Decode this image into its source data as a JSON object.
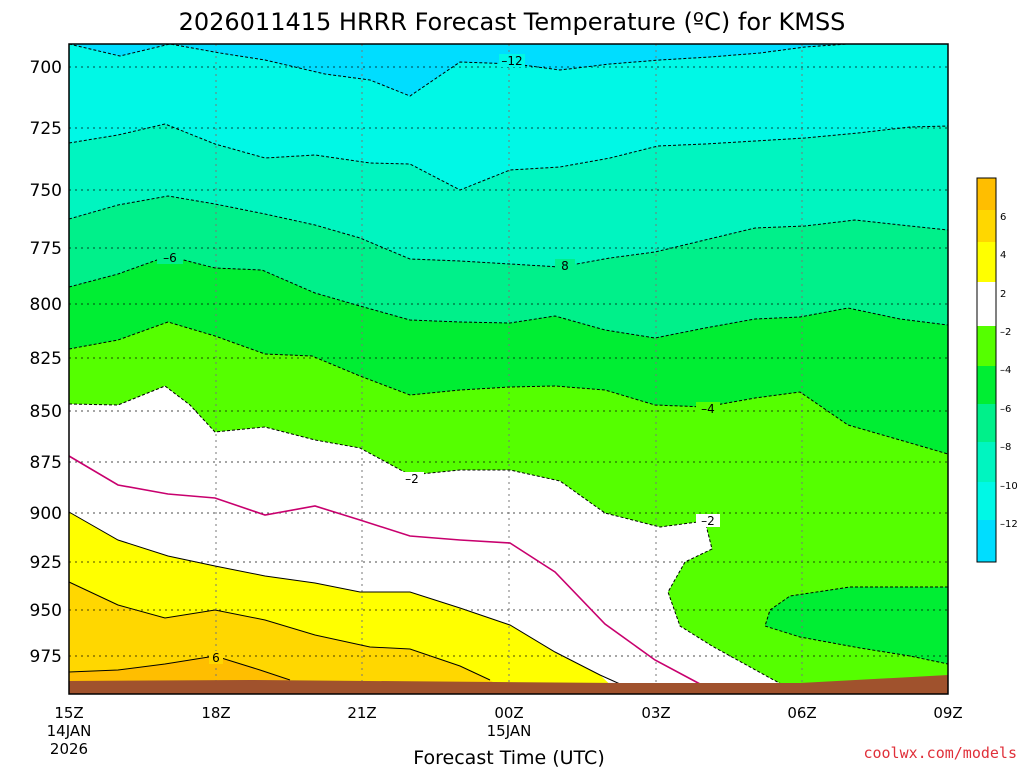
{
  "chart_data": {
    "type": "contour",
    "title": "2026011415 HRRR Forecast Temperature (ºC) for KMSS",
    "xlabel": "Forecast Time (UTC)",
    "ylabel": "",
    "ylim": [
      990,
      690
    ],
    "y_ticks": [
      "700",
      "725",
      "750",
      "775",
      "800",
      "825",
      "850",
      "875",
      "900",
      "925",
      "950",
      "975"
    ],
    "x_ticks": [
      {
        "label": "15Z",
        "sub1": "14JAN",
        "sub2": "2026"
      },
      {
        "label": "18Z",
        "sub1": "",
        "sub2": ""
      },
      {
        "label": "21Z",
        "sub1": "",
        "sub2": ""
      },
      {
        "label": "00Z",
        "sub1": "15JAN",
        "sub2": ""
      },
      {
        "label": "03Z",
        "sub1": "",
        "sub2": ""
      },
      {
        "label": "06Z",
        "sub1": "",
        "sub2": ""
      },
      {
        "label": "09Z",
        "sub1": "",
        "sub2": ""
      }
    ],
    "colorbar": {
      "labels": [
        "6",
        "4",
        "2",
        "–2",
        "–4",
        "–6",
        "–8",
        "–10",
        "–12"
      ],
      "colors": [
        "#ffbe00",
        "#ffd700",
        "#ffff00",
        "#ffffff",
        "#55ff00",
        "#00ee33",
        "#00f08a",
        "#00f5c0",
        "#00f8e6",
        "#00ddff"
      ]
    },
    "contour_labels": [
      "–12",
      "–6",
      "8",
      "–4",
      "–2",
      "–2",
      "6"
    ],
    "contour_values": [
      -12,
      -10,
      -8,
      -6,
      -4,
      -2,
      0,
      2,
      4,
      6
    ],
    "grid": true,
    "freezing_line_color": "#c8006e"
  },
  "credit": "coolwx.com/models"
}
